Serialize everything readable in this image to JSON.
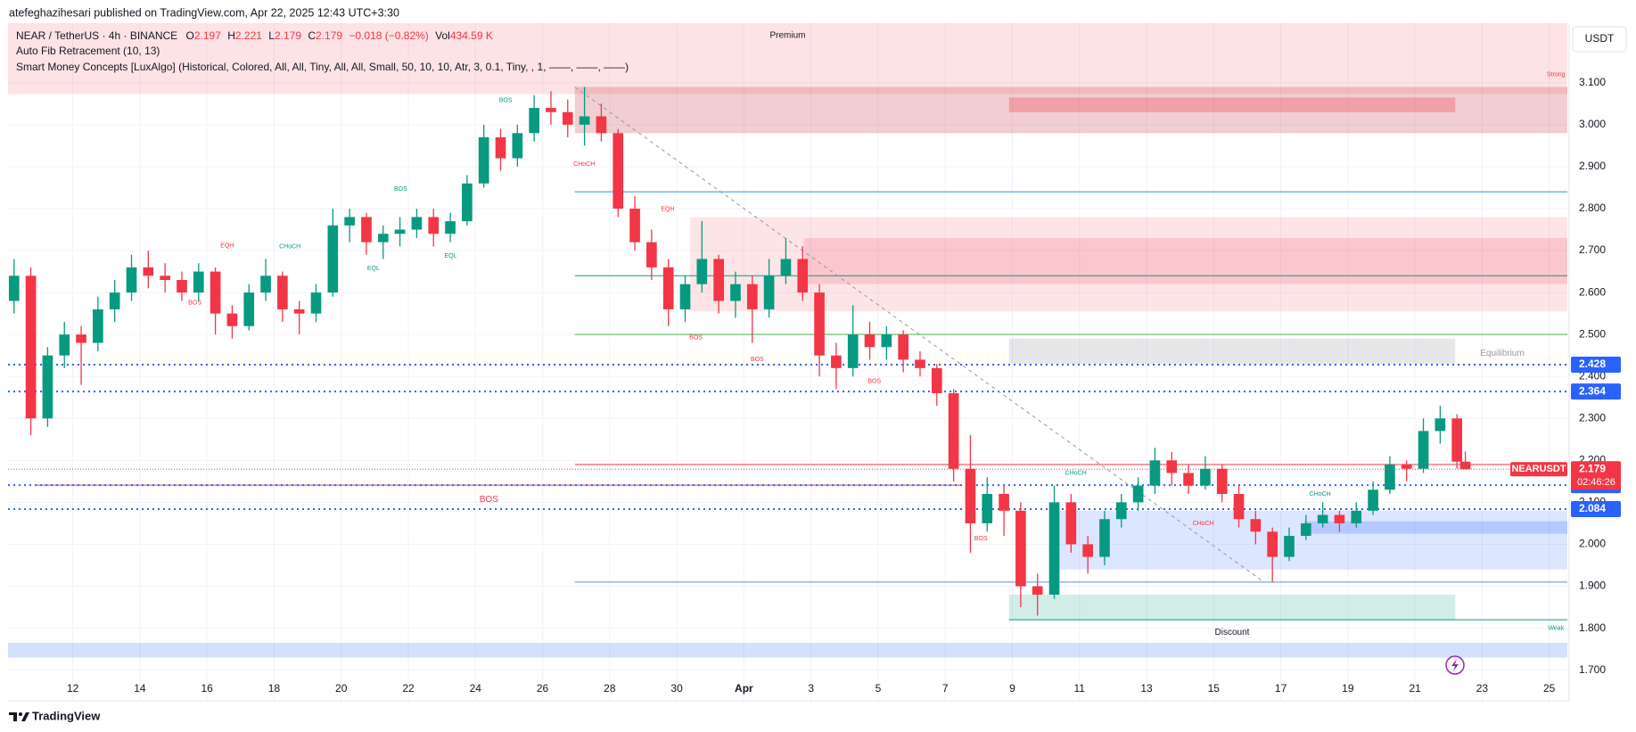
{
  "header": {
    "publisher": "atefeghazihesari published on TradingView.com, Apr 22, 2025 12:43 UTC+3:30",
    "symbol": "NEAR / TetherUS · 4h · BINANCE",
    "o_key": "O",
    "open": "2.197",
    "h_key": "H",
    "high": "2.221",
    "l_key": "L",
    "low": "2.179",
    "c_key": "C",
    "close": "2.179",
    "change": "−0.018 (−0.82%)",
    "vol_key": "Vol",
    "volume": "434.59 K",
    "indicator1": "Auto Fib Retracement (10, 13)",
    "indicator2": "Smart Money Concepts [LuxAlgo] (Historical, Colored, All, All, Tiny, All, All, Small, 50, 10, 10, Atr, 3, 0.1, Tiny, , 1, ——, ——, ——)"
  },
  "footer": {
    "brand": "TradingView"
  },
  "chart_data": {
    "type": "candlestick",
    "currency": "USDT",
    "up_color": "#089981",
    "down_color": "#f23645",
    "grid": true,
    "xlim": [
      10.07,
      56.54
    ],
    "ylim": [
      1.678,
      3.242
    ],
    "xticks": [
      12,
      14,
      16,
      18,
      20,
      22,
      24,
      26,
      28,
      30,
      {
        "value": 32,
        "label": "Apr"
      },
      {
        "value": 34,
        "label": "3"
      },
      {
        "value": 36,
        "label": "5"
      },
      {
        "value": 38,
        "label": "7"
      },
      {
        "value": 40,
        "label": "9"
      },
      {
        "value": 42,
        "label": "11"
      },
      {
        "value": 44,
        "label": "13"
      },
      {
        "value": 46,
        "label": "15"
      },
      {
        "value": 48,
        "label": "17"
      },
      {
        "value": 50,
        "label": "19"
      },
      {
        "value": 52,
        "label": "21"
      },
      {
        "value": 54,
        "label": "23"
      },
      {
        "value": 56,
        "label": "25"
      }
    ],
    "yticks": [
      {
        "value": 1.7,
        "label": "1.700"
      },
      {
        "value": 1.8,
        "label": "1.800"
      },
      {
        "value": 1.9,
        "label": "1.900"
      },
      {
        "value": 2.0,
        "label": "2.000"
      },
      {
        "value": 2.1,
        "label": "2.100"
      },
      {
        "value": 2.2,
        "label": "2.200"
      },
      {
        "value": 2.3,
        "label": "2.300"
      },
      {
        "value": 2.4,
        "label": "2.400"
      },
      {
        "value": 2.5,
        "label": "2.500"
      },
      {
        "value": 2.6,
        "label": "2.600"
      },
      {
        "value": 2.7,
        "label": "2.700"
      },
      {
        "value": 2.8,
        "label": "2.800"
      },
      {
        "value": 2.9,
        "label": "2.900"
      },
      {
        "value": 3.0,
        "label": "3.000"
      },
      {
        "value": 3.1,
        "label": "3.100"
      }
    ],
    "x": [
      10.25,
      10.75,
      11.25,
      11.75,
      12.25,
      12.75,
      13.25,
      13.75,
      14.25,
      14.75,
      15.25,
      15.75,
      16.25,
      16.75,
      17.25,
      17.75,
      18.25,
      18.75,
      19.25,
      19.75,
      20.25,
      20.75,
      21.25,
      21.75,
      22.25,
      22.75,
      23.25,
      23.75,
      24.25,
      24.75,
      25.25,
      25.75,
      26.25,
      26.75,
      27.25,
      27.75,
      28.25,
      28.75,
      29.25,
      29.75,
      30.25,
      30.75,
      31.25,
      31.75,
      32.25,
      32.75,
      33.25,
      33.75,
      34.25,
      34.75,
      35.25,
      35.75,
      36.25,
      36.75,
      37.25,
      37.75,
      38.25,
      38.75,
      39.25,
      39.75,
      40.25,
      40.75,
      41.25,
      41.75,
      42.25,
      42.75,
      43.25,
      43.75,
      44.25,
      44.75,
      45.25,
      45.75,
      46.25,
      46.75,
      47.25,
      47.75,
      48.25,
      48.75,
      49.25,
      49.75,
      50.25,
      50.75,
      51.25,
      51.75,
      52.25,
      52.75,
      53.25,
      53.5
    ],
    "candles": [
      [
        2.58,
        2.68,
        2.55,
        2.64
      ],
      [
        2.64,
        2.66,
        2.26,
        2.3
      ],
      [
        2.3,
        2.47,
        2.28,
        2.45
      ],
      [
        2.45,
        2.53,
        2.42,
        2.5
      ],
      [
        2.5,
        2.52,
        2.38,
        2.48
      ],
      [
        2.48,
        2.59,
        2.46,
        2.56
      ],
      [
        2.56,
        2.63,
        2.53,
        2.6
      ],
      [
        2.6,
        2.69,
        2.58,
        2.66
      ],
      [
        2.66,
        2.7,
        2.61,
        2.64
      ],
      [
        2.64,
        2.67,
        2.6,
        2.63
      ],
      [
        2.63,
        2.65,
        2.58,
        2.6
      ],
      [
        2.6,
        2.67,
        2.58,
        2.65
      ],
      [
        2.65,
        2.66,
        2.5,
        2.55
      ],
      [
        2.55,
        2.57,
        2.49,
        2.52
      ],
      [
        2.52,
        2.62,
        2.51,
        2.6
      ],
      [
        2.6,
        2.68,
        2.58,
        2.64
      ],
      [
        2.64,
        2.65,
        2.53,
        2.56
      ],
      [
        2.56,
        2.58,
        2.5,
        2.55
      ],
      [
        2.55,
        2.62,
        2.53,
        2.6
      ],
      [
        2.6,
        2.8,
        2.59,
        2.76
      ],
      [
        2.76,
        2.8,
        2.72,
        2.78
      ],
      [
        2.78,
        2.79,
        2.69,
        2.72
      ],
      [
        2.72,
        2.76,
        2.68,
        2.74
      ],
      [
        2.74,
        2.78,
        2.71,
        2.75
      ],
      [
        2.75,
        2.8,
        2.73,
        2.78
      ],
      [
        2.78,
        2.8,
        2.71,
        2.74
      ],
      [
        2.74,
        2.79,
        2.72,
        2.77
      ],
      [
        2.77,
        2.88,
        2.76,
        2.86
      ],
      [
        2.86,
        3.0,
        2.85,
        2.97
      ],
      [
        2.97,
        2.99,
        2.89,
        2.92
      ],
      [
        2.92,
        3.0,
        2.9,
        2.98
      ],
      [
        2.98,
        3.07,
        2.96,
        3.04
      ],
      [
        3.04,
        3.08,
        3.0,
        3.03
      ],
      [
        3.03,
        3.06,
        2.97,
        3.0
      ],
      [
        3.0,
        3.09,
        2.95,
        3.02
      ],
      [
        3.02,
        3.05,
        2.96,
        2.98
      ],
      [
        2.98,
        2.99,
        2.78,
        2.8
      ],
      [
        2.8,
        2.83,
        2.7,
        2.72
      ],
      [
        2.72,
        2.75,
        2.63,
        2.66
      ],
      [
        2.66,
        2.68,
        2.52,
        2.56
      ],
      [
        2.56,
        2.64,
        2.53,
        2.62
      ],
      [
        2.62,
        2.77,
        2.6,
        2.68
      ],
      [
        2.68,
        2.69,
        2.55,
        2.58
      ],
      [
        2.58,
        2.65,
        2.54,
        2.62
      ],
      [
        2.62,
        2.64,
        2.48,
        2.56
      ],
      [
        2.56,
        2.68,
        2.54,
        2.64
      ],
      [
        2.64,
        2.73,
        2.62,
        2.68
      ],
      [
        2.68,
        2.71,
        2.58,
        2.6
      ],
      [
        2.6,
        2.62,
        2.4,
        2.45
      ],
      [
        2.45,
        2.48,
        2.37,
        2.42
      ],
      [
        2.42,
        2.57,
        2.4,
        2.5
      ],
      [
        2.5,
        2.53,
        2.44,
        2.47
      ],
      [
        2.47,
        2.52,
        2.44,
        2.5
      ],
      [
        2.5,
        2.51,
        2.41,
        2.44
      ],
      [
        2.44,
        2.46,
        2.4,
        2.42
      ],
      [
        2.42,
        2.43,
        2.33,
        2.36
      ],
      [
        2.36,
        2.37,
        2.15,
        2.18
      ],
      [
        2.18,
        2.26,
        1.98,
        2.05
      ],
      [
        2.05,
        2.16,
        2.03,
        2.12
      ],
      [
        2.12,
        2.14,
        2.02,
        2.08
      ],
      [
        2.08,
        2.1,
        1.85,
        1.9
      ],
      [
        1.9,
        1.93,
        1.83,
        1.88
      ],
      [
        1.88,
        2.14,
        1.87,
        2.1
      ],
      [
        2.1,
        2.12,
        1.98,
        2.0
      ],
      [
        2.0,
        2.02,
        1.93,
        1.97
      ],
      [
        1.97,
        2.08,
        1.95,
        2.06
      ],
      [
        2.06,
        2.12,
        2.04,
        2.1
      ],
      [
        2.1,
        2.16,
        2.08,
        2.14
      ],
      [
        2.14,
        2.23,
        2.12,
        2.2
      ],
      [
        2.2,
        2.22,
        2.14,
        2.17
      ],
      [
        2.17,
        2.19,
        2.12,
        2.14
      ],
      [
        2.14,
        2.21,
        2.13,
        2.18
      ],
      [
        2.18,
        2.19,
        2.1,
        2.12
      ],
      [
        2.12,
        2.14,
        2.04,
        2.06
      ],
      [
        2.06,
        2.08,
        2.0,
        2.03
      ],
      [
        2.03,
        2.04,
        1.91,
        1.97
      ],
      [
        1.97,
        2.04,
        1.96,
        2.02
      ],
      [
        2.02,
        2.07,
        2.01,
        2.05
      ],
      [
        2.05,
        2.1,
        2.04,
        2.07
      ],
      [
        2.07,
        2.08,
        2.03,
        2.05
      ],
      [
        2.05,
        2.1,
        2.04,
        2.08
      ],
      [
        2.08,
        2.15,
        2.07,
        2.13
      ],
      [
        2.13,
        2.21,
        2.12,
        2.19
      ],
      [
        2.19,
        2.2,
        2.15,
        2.18
      ],
      [
        2.18,
        2.3,
        2.17,
        2.27
      ],
      [
        2.27,
        2.33,
        2.24,
        2.3
      ],
      [
        2.3,
        2.31,
        2.18,
        2.197
      ],
      [
        2.197,
        2.221,
        2.179,
        2.179
      ]
    ],
    "zones": [
      {
        "x": [
          10.07,
          56.54
        ],
        "y": [
          3.073,
          3.242
        ],
        "color": "rgba(242,54,69,0.14)",
        "label": "Premium",
        "label_color": "#f23645"
      },
      {
        "x": [
          26.96,
          56.54
        ],
        "y": [
          2.98,
          3.09
        ],
        "color": "rgba(200,60,70,0.25)"
      },
      {
        "x": [
          39.9,
          53.2
        ],
        "y": [
          3.03,
          3.065
        ],
        "color": "rgba(242,54,69,0.3)"
      },
      {
        "x": [
          30.4,
          56.54
        ],
        "y": [
          2.555,
          2.78
        ],
        "color": "rgba(242,54,69,0.13)"
      },
      {
        "x": [
          33.8,
          56.54
        ],
        "y": [
          2.62,
          2.73
        ],
        "color": "rgba(242,54,69,0.17)"
      },
      {
        "x": [
          39.9,
          53.2
        ],
        "y": [
          2.43,
          2.49
        ],
        "color": "rgba(120,123,134,0.18)"
      },
      {
        "x": [
          41.4,
          56.54
        ],
        "y": [
          1.94,
          2.08
        ],
        "color": "rgba(41,98,255,0.16)"
      },
      {
        "x": [
          48.7,
          56.54
        ],
        "y": [
          2.025,
          2.055
        ],
        "color": "rgba(41,98,255,0.22)"
      },
      {
        "x": [
          39.9,
          53.2
        ],
        "y": [
          1.82,
          1.88
        ],
        "color": "rgba(8,153,129,0.18)",
        "label": "Discount",
        "label_color": "#089981",
        "label_below": true
      },
      {
        "x": [
          10.07,
          56.54
        ],
        "y": [
          1.73,
          1.765
        ],
        "color": "rgba(41,98,255,0.2)"
      }
    ],
    "levels": [
      {
        "value": 2.84,
        "x": [
          26.96,
          56.54
        ],
        "color": "#2196f3",
        "style": "solid"
      },
      {
        "value": 2.64,
        "x": [
          26.96,
          56.54
        ],
        "color": "#089981",
        "style": "solid"
      },
      {
        "value": 2.5,
        "x": [
          26.96,
          56.54
        ],
        "color": "#4caf50",
        "style": "solid"
      },
      {
        "value": 2.428,
        "x": [
          10.07,
          56.54
        ],
        "color": "#2962ff",
        "style": "dotted",
        "badge": true
      },
      {
        "value": 2.364,
        "x": [
          10.07,
          56.54
        ],
        "color": "#2962ff",
        "style": "dotted",
        "badge": true
      },
      {
        "value": 2.19,
        "x": [
          26.96,
          56.54
        ],
        "color": "#f23645",
        "style": "solid"
      },
      {
        "value": 2.141,
        "x": [
          10.9,
          38.5
        ],
        "color": "#f23645",
        "style": "solid"
      },
      {
        "value": 2.141,
        "x": [
          10.07,
          56.54
        ],
        "color": "#2962ff",
        "style": "dotted",
        "badge": true
      },
      {
        "value": 2.084,
        "x": [
          10.07,
          56.54
        ],
        "color": "#2962ff",
        "style": "dotted",
        "badge": true
      },
      {
        "value": 1.91,
        "x": [
          26.96,
          56.54
        ],
        "color": "#5b8fd6",
        "style": "solid"
      },
      {
        "value": 1.82,
        "x": [
          39.9,
          56.54
        ],
        "color": "#089981",
        "style": "solid"
      }
    ],
    "trendline": {
      "x": [
        26.96,
        47.5
      ],
      "y": [
        3.09,
        1.91
      ],
      "color": "#9598a1"
    },
    "last_price": {
      "name": "NEARUSDT",
      "value": 2.179,
      "countdown": "02:46:26",
      "color": "#f23645"
    },
    "annotations": [
      {
        "text": "BOS",
        "x": 24.4,
        "y": 2.107,
        "color": "#f23645",
        "size": "big"
      },
      {
        "text": "BOS",
        "x": 24.9,
        "y": 3.058,
        "color": "#089981"
      },
      {
        "text": "CHoCH",
        "x": 18.47,
        "y": 2.709,
        "color": "#089981"
      },
      {
        "text": "EQH",
        "x": 16.6,
        "y": 2.712,
        "color": "#f23645"
      },
      {
        "text": "BOS",
        "x": 21.77,
        "y": 2.846,
        "color": "#089981"
      },
      {
        "text": "EQL",
        "x": 20.96,
        "y": 2.657,
        "color": "#089981"
      },
      {
        "text": "EQL",
        "x": 23.26,
        "y": 2.687,
        "color": "#089981"
      },
      {
        "text": "BOS",
        "x": 15.64,
        "y": 2.575,
        "color": "#f23645"
      },
      {
        "text": "CHoCH",
        "x": 27.24,
        "y": 2.906,
        "color": "#f23645"
      },
      {
        "text": "EQH",
        "x": 29.73,
        "y": 2.799,
        "color": "#f23645"
      },
      {
        "text": "BOS",
        "x": 30.57,
        "y": 2.493,
        "color": "#f23645"
      },
      {
        "text": "BOS",
        "x": 32.4,
        "y": 2.441,
        "color": "#f23645"
      },
      {
        "text": "BOS",
        "x": 35.89,
        "y": 2.389,
        "color": "#f23645"
      },
      {
        "text": "BOS",
        "x": 39.06,
        "y": 2.013,
        "color": "#f23645"
      },
      {
        "text": "CHoCH",
        "x": 41.89,
        "y": 2.17,
        "color": "#089981"
      },
      {
        "text": "CHoCH",
        "x": 45.69,
        "y": 2.05,
        "color": "#f23645"
      },
      {
        "text": "CHoCH",
        "x": 49.17,
        "y": 2.12,
        "color": "#089981"
      },
      {
        "text": "Equilibrium",
        "x": 54.6,
        "y": 2.455,
        "color": "#9598a1",
        "size": "mid"
      },
      {
        "text": "Strong",
        "x": 56.2,
        "y": 3.12,
        "color": "#f23645"
      },
      {
        "text": "Weak",
        "x": 56.2,
        "y": 1.8,
        "color": "#089981"
      }
    ]
  }
}
